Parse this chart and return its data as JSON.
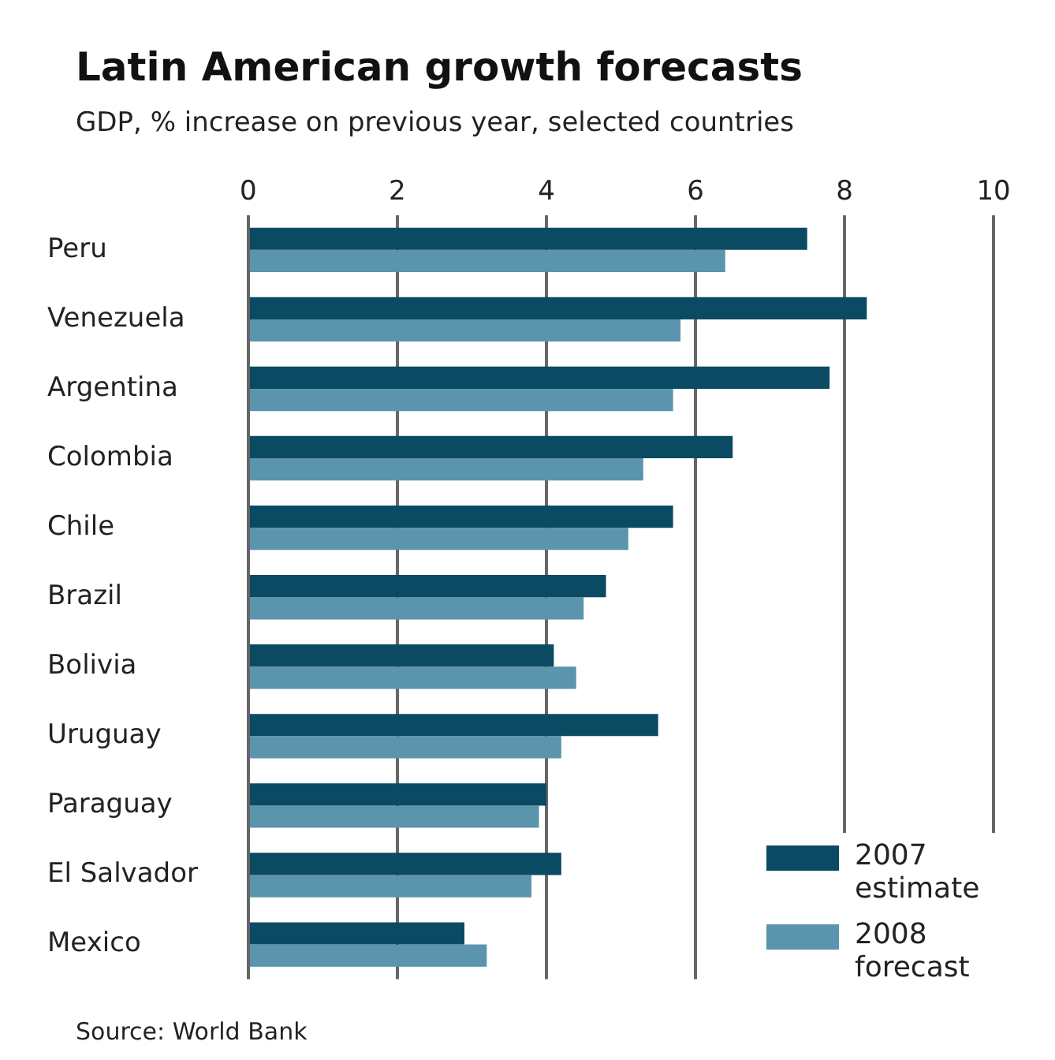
{
  "chart_data": {
    "type": "bar",
    "orientation": "horizontal",
    "title": "Latin American growth forecasts",
    "subtitle": "GDP, % increase on previous year, selected countries",
    "categories": [
      "Peru",
      "Venezuela",
      "Argentina",
      "Colombia",
      "Chile",
      "Brazil",
      "Bolivia",
      "Uruguay",
      "Paraguay",
      "El Salvador",
      "Mexico"
    ],
    "series": [
      {
        "name": "2007 estimate",
        "color": "#0b4a63",
        "values": [
          7.5,
          8.3,
          7.8,
          6.5,
          5.7,
          4.8,
          4.1,
          5.5,
          4.0,
          4.2,
          2.9
        ]
      },
      {
        "name": "2008 forecast",
        "color": "#5b95ad",
        "values": [
          6.4,
          5.8,
          5.7,
          5.3,
          5.1,
          4.5,
          4.4,
          4.2,
          3.9,
          3.8,
          3.2
        ]
      }
    ],
    "xlim": [
      0,
      10
    ],
    "xticks": [
      0,
      2,
      4,
      6,
      8,
      10
    ],
    "grid": "x",
    "legend": "bottom right",
    "annotations": [
      "Source: World Bank"
    ]
  }
}
